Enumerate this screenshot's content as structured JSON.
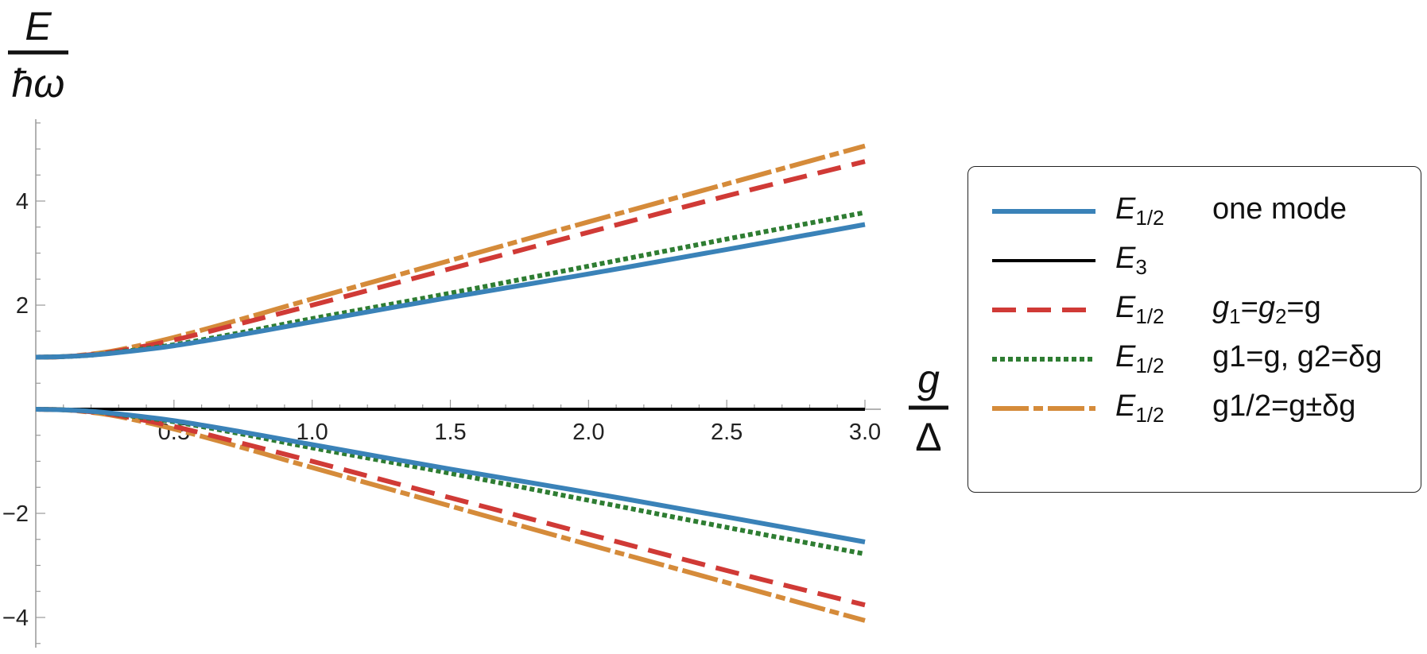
{
  "chart_data": {
    "type": "line",
    "ylabel": {
      "numerator": "E",
      "denominator": "ħω"
    },
    "xlabel": {
      "numerator": "g",
      "denominator": "Δ"
    },
    "xlim": [
      0,
      3.0
    ],
    "ylim": [
      -4.5,
      5.5
    ],
    "xticks": [
      0.5,
      1.0,
      1.5,
      2.0,
      2.5,
      3.0
    ],
    "xtick_labels": [
      "0.5",
      "1.0",
      "1.5",
      "2.0",
      "2.5",
      "3.0"
    ],
    "yticks": [
      -4,
      -2,
      2,
      4
    ],
    "ytick_labels": [
      "−4",
      "−2",
      "2",
      "4"
    ],
    "grid": false,
    "legend_position": "right",
    "series": [
      {
        "legend_name": "E",
        "legend_sub": "1/2",
        "legend_desc": "one mode",
        "color": "#3a82b8",
        "style": "solid",
        "x": [
          0,
          0.1,
          0.2,
          0.3,
          0.5,
          0.75,
          1.0,
          1.5,
          2.0,
          2.5,
          3.0
        ],
        "upper": [
          1.0,
          1.01,
          1.04,
          1.09,
          1.22,
          1.44,
          1.68,
          2.15,
          2.6,
          3.07,
          3.55
        ],
        "lower": [
          0.0,
          -0.01,
          -0.04,
          -0.09,
          -0.22,
          -0.44,
          -0.68,
          -1.15,
          -1.6,
          -2.07,
          -2.55
        ]
      },
      {
        "legend_name": "E",
        "legend_sub": "3",
        "legend_desc": "",
        "color": "#000000",
        "style": "solid",
        "x": [
          0,
          3.0
        ],
        "upper": [
          0,
          0
        ],
        "lower": null
      },
      {
        "legend_name": "E",
        "legend_sub": "1/2",
        "legend_desc_parts": [
          "g",
          "1",
          "=",
          "g",
          "2",
          "=g"
        ],
        "color": "#d03a36",
        "style": "dashed",
        "x": [
          0,
          0.1,
          0.2,
          0.3,
          0.5,
          0.75,
          1.0,
          1.5,
          2.0,
          2.5,
          3.0
        ],
        "upper": [
          1.0,
          1.01,
          1.05,
          1.12,
          1.33,
          1.66,
          2.0,
          2.7,
          3.4,
          4.1,
          4.76
        ],
        "lower": [
          0.0,
          -0.01,
          -0.05,
          -0.12,
          -0.33,
          -0.66,
          -1.0,
          -1.7,
          -2.4,
          -3.1,
          -3.76
        ]
      },
      {
        "legend_name": "E",
        "legend_sub": "1/2",
        "legend_desc": "g1=g, g2=δg",
        "color": "#2e7d32",
        "style": "dotted",
        "x": [
          0,
          0.1,
          0.2,
          0.3,
          0.5,
          0.75,
          1.0,
          1.5,
          2.0,
          2.5,
          3.0
        ],
        "upper": [
          1.0,
          1.01,
          1.04,
          1.1,
          1.24,
          1.48,
          1.74,
          2.23,
          2.75,
          3.27,
          3.78
        ],
        "lower": [
          0.0,
          -0.01,
          -0.04,
          -0.1,
          -0.24,
          -0.48,
          -0.74,
          -1.23,
          -1.75,
          -2.27,
          -2.78
        ]
      },
      {
        "legend_name": "E",
        "legend_sub": "1/2",
        "legend_desc": "g1/2=g±δg",
        "color": "#d58b3a",
        "style": "dashdash",
        "x": [
          0,
          0.1,
          0.2,
          0.3,
          0.5,
          0.75,
          1.0,
          1.5,
          2.0,
          2.5,
          3.0
        ],
        "upper": [
          1.0,
          1.01,
          1.06,
          1.14,
          1.38,
          1.74,
          2.12,
          2.86,
          3.6,
          4.33,
          5.06
        ],
        "lower": [
          0.0,
          -0.01,
          -0.06,
          -0.14,
          -0.38,
          -0.74,
          -1.12,
          -1.86,
          -2.6,
          -3.33,
          -4.06
        ]
      }
    ]
  }
}
